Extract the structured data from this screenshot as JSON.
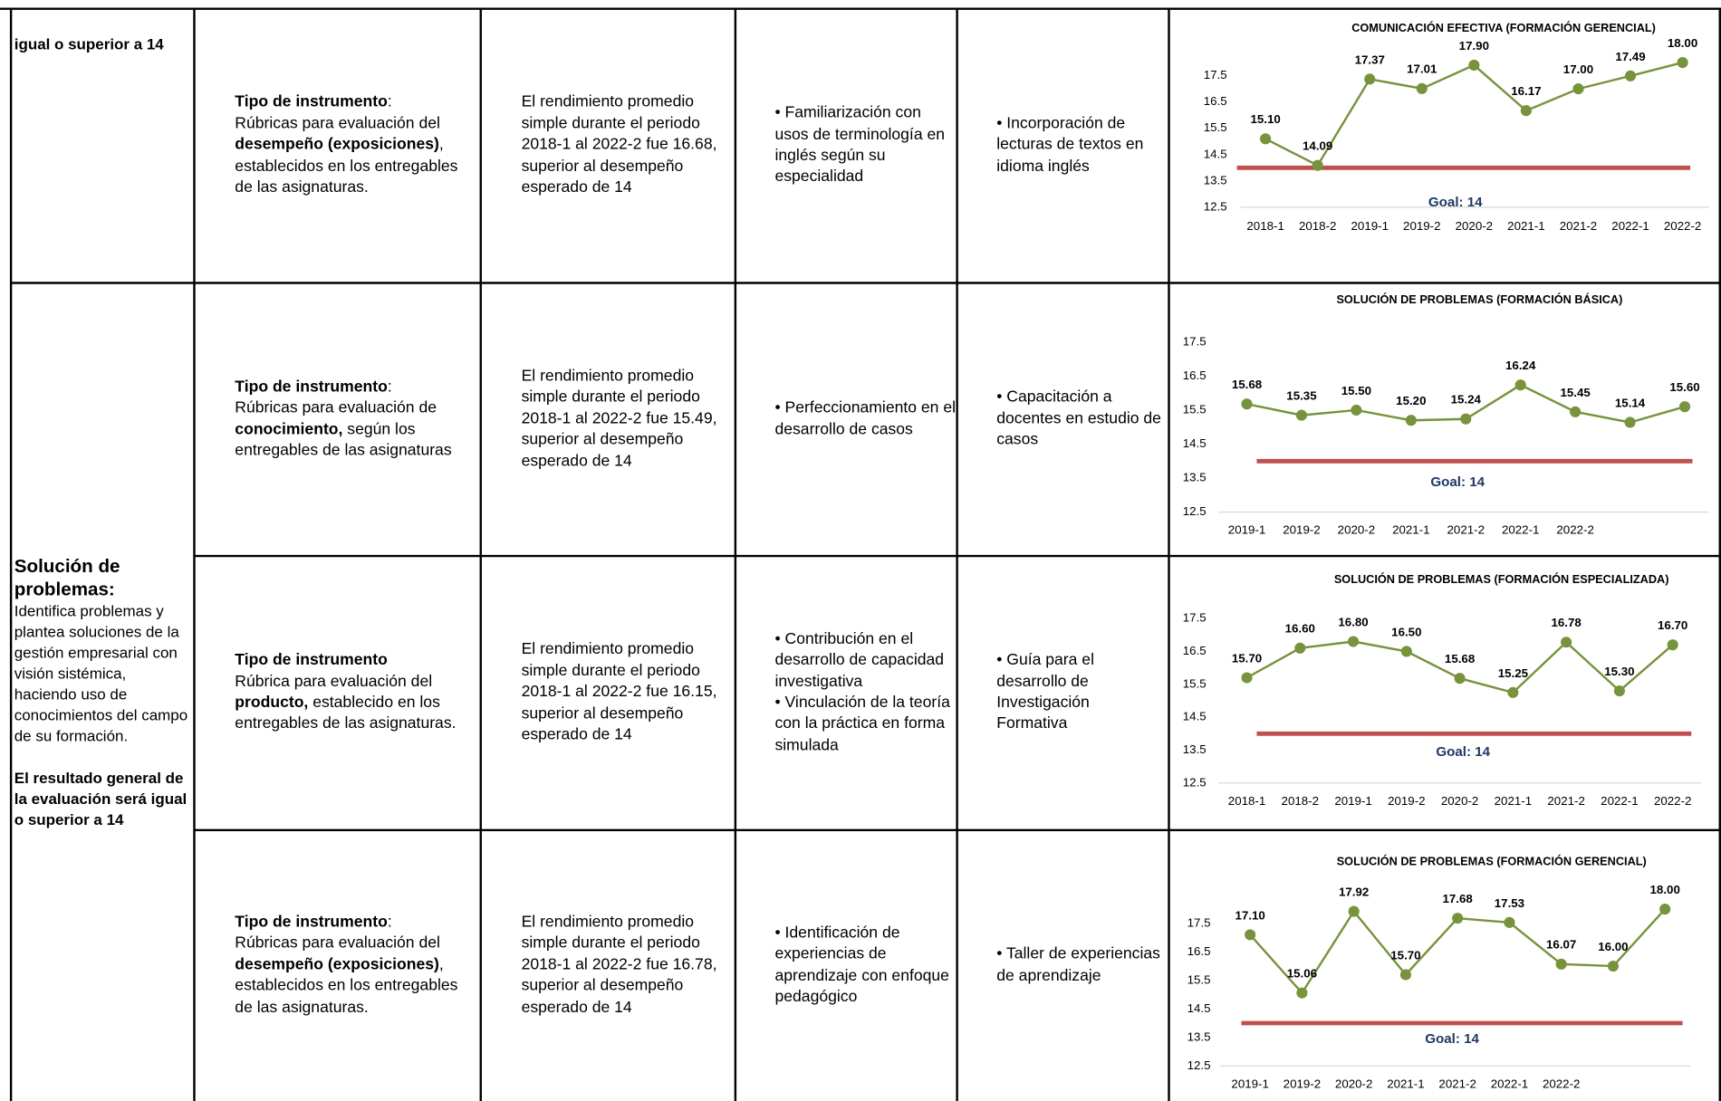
{
  "table": {
    "sections": [
      {
        "criterion": [
          {
            "text": "igual o superior a 14",
            "bold": true
          }
        ],
        "rows": [
          {
            "instrument": [
              {
                "text": "Tipo de instrumento",
                "bold": true
              },
              {
                "text": ":\nRúbricas para evaluación del "
              },
              {
                "text": "desempeño (exposiciones)",
                "bold": true
              },
              {
                "text": ", establecidos en los entregables de las asignaturas."
              }
            ],
            "result": "El rendimiento promedio simple durante el periodo 2018-1 al 2022-2 fue 16.68, superior al desempeño esperado de 14",
            "improvement": [
              "• Familiarización con usos de terminología en inglés según su especialidad"
            ],
            "action": "• Incorporación de lecturas de textos en idioma inglés"
          }
        ]
      },
      {
        "criterion": [
          {
            "text": "Solución de problemas:",
            "heading": true
          },
          {
            "text": "Identifica problemas y plantea soluciones de la gestión empresarial con visión sistémica, haciendo uso de conocimientos del campo de su formación."
          },
          {
            "text": "El resultado general de la evaluación será igual o superior a 14",
            "bold": true
          }
        ],
        "rows": [
          {
            "instrument": [
              {
                "text": "Tipo de instrumento",
                "bold": true
              },
              {
                "text": ":\nRúbricas para evaluación de "
              },
              {
                "text": "conocimiento,",
                "bold": true
              },
              {
                "text": " según los entregables de las asignaturas"
              }
            ],
            "result": "El rendimiento promedio simple durante el periodo 2018-1 al 2022-2 fue 15.49, superior al desempeño esperado de 14",
            "improvement": [
              "• Perfeccionamiento en el desarrollo de casos"
            ],
            "action": "• Capacitación a docentes en estudio de casos"
          },
          {
            "instrument": [
              {
                "text": "Tipo de instrumento",
                "bold": true
              },
              {
                "text": "\nRúbrica para evaluación  del "
              },
              {
                "text": "producto,",
                "bold": true
              },
              {
                "text": " establecido en los entregables de las asignaturas."
              }
            ],
            "result": "El rendimiento promedio simple durante el periodo 2018-1 al 2022-2 fue 16.15, superior al desempeño esperado de 14",
            "improvement": [
              "• Contribución en el desarrollo de capacidad investigativa",
              "• Vinculación de la teoría con la práctica en forma simulada"
            ],
            "action": "• Guía para el desarrollo de Investigación Formativa"
          },
          {
            "instrument": [
              {
                "text": "Tipo de instrumento",
                "bold": true
              },
              {
                "text": ":\nRúbricas para evaluación del "
              },
              {
                "text": "desempeño (exposiciones)",
                "bold": true
              },
              {
                "text": ", establecidos en los entregables de las asignaturas."
              }
            ],
            "result": "El rendimiento promedio simple durante el periodo 2018-1 al 2022-2 fue 16.78, superior al desempeño esperado de 14",
            "improvement": [
              "• Identificación de experiencias de aprendizaje con enfoque pedagógico"
            ],
            "action": "• Taller de experiencias de aprendizaje"
          }
        ]
      }
    ]
  },
  "chart_data": [
    {
      "type": "line",
      "title": "COMUNICACIÓN EFECTIVA (FORMACIÓN GERENCIAL)",
      "categories": [
        "2018-1",
        "2018-2",
        "2019-1",
        "2019-2",
        "2020-2",
        "2021-1",
        "2021-2",
        "2022-1",
        "2022-2"
      ],
      "values": [
        15.1,
        14.09,
        17.37,
        17.01,
        17.9,
        16.17,
        17.0,
        17.49,
        18.0
      ],
      "value_labels": [
        "15.10",
        "14.09",
        "17.37",
        "17.01",
        "17.90",
        "16.17",
        "17.00",
        "17.49",
        "18.00"
      ],
      "color": "#77933c",
      "ylim": [
        12.5,
        18
      ],
      "yticks": [
        12.5,
        13.5,
        14.5,
        15.5,
        16.5,
        17.5
      ],
      "goal": 14,
      "goal_label": "Goal: 14",
      "goal_color": "#c0504d"
    },
    {
      "type": "line",
      "title": "SOLUCIÓN DE PROBLEMAS (FORMACIÓN BÁSICA)",
      "categories": [
        "2019-1",
        "2019-2",
        "2020-2",
        "2021-1",
        "2021-2",
        "2022-1",
        "2022-2",
        null,
        null
      ],
      "values": [
        15.68,
        15.35,
        15.5,
        15.2,
        15.24,
        16.24,
        15.45,
        15.14,
        15.6
      ],
      "value_labels": [
        "15.68",
        "15.35",
        "15.50",
        "15.20",
        "15.24",
        "16.24",
        "15.45",
        "15.14",
        "15.60"
      ],
      "color": "#77933c",
      "ylim": [
        12.5,
        17.5
      ],
      "yticks": [
        12.5,
        13.5,
        14.5,
        15.5,
        16.5,
        17.5
      ],
      "goal": 14,
      "goal_label": "Goal: 14",
      "goal_color": "#c0504d"
    },
    {
      "type": "line",
      "title": "SOLUCIÓN DE PROBLEMAS (FORMACIÓN ESPECIALIZADA)",
      "categories": [
        "2018-1",
        "2018-2",
        "2019-1",
        "2019-2",
        "2020-2",
        "2021-1",
        "2021-2",
        "2022-1",
        "2022-2"
      ],
      "values": [
        15.7,
        16.6,
        16.8,
        16.5,
        15.68,
        15.25,
        16.78,
        15.3,
        16.7
      ],
      "value_labels": [
        "15.70",
        "16.60",
        "16.80",
        "16.50",
        "15.68",
        "15.25",
        "16.78",
        "15.30",
        "16.70"
      ],
      "color": "#77933c",
      "ylim": [
        12.5,
        17.5
      ],
      "yticks": [
        12.5,
        13.5,
        14.5,
        15.5,
        16.5,
        17.5
      ],
      "goal": 14,
      "goal_label": "Goal: 14",
      "goal_color": "#c0504d"
    },
    {
      "type": "line",
      "title": "SOLUCIÓN DE PROBLEMAS (FORMACIÓN GERENCIAL)",
      "categories": [
        "2019-1",
        "2019-2",
        "2020-2",
        "2021-1",
        "2021-2",
        "2022-1",
        "2022-2",
        null,
        null
      ],
      "values": [
        17.1,
        15.06,
        17.92,
        15.7,
        17.68,
        17.53,
        16.07,
        16.0,
        18.0
      ],
      "value_labels": [
        "17.10",
        "15.06",
        "17.92",
        "15.70",
        "17.68",
        "17.53",
        "16.07",
        "16.00",
        "18.00"
      ],
      "color": "#77933c",
      "ylim": [
        12.5,
        18
      ],
      "yticks": [
        12.5,
        13.5,
        14.5,
        15.5,
        16.5,
        17.5
      ],
      "goal": 14,
      "goal_label": "Goal: 14",
      "goal_color": "#c0504d"
    }
  ]
}
